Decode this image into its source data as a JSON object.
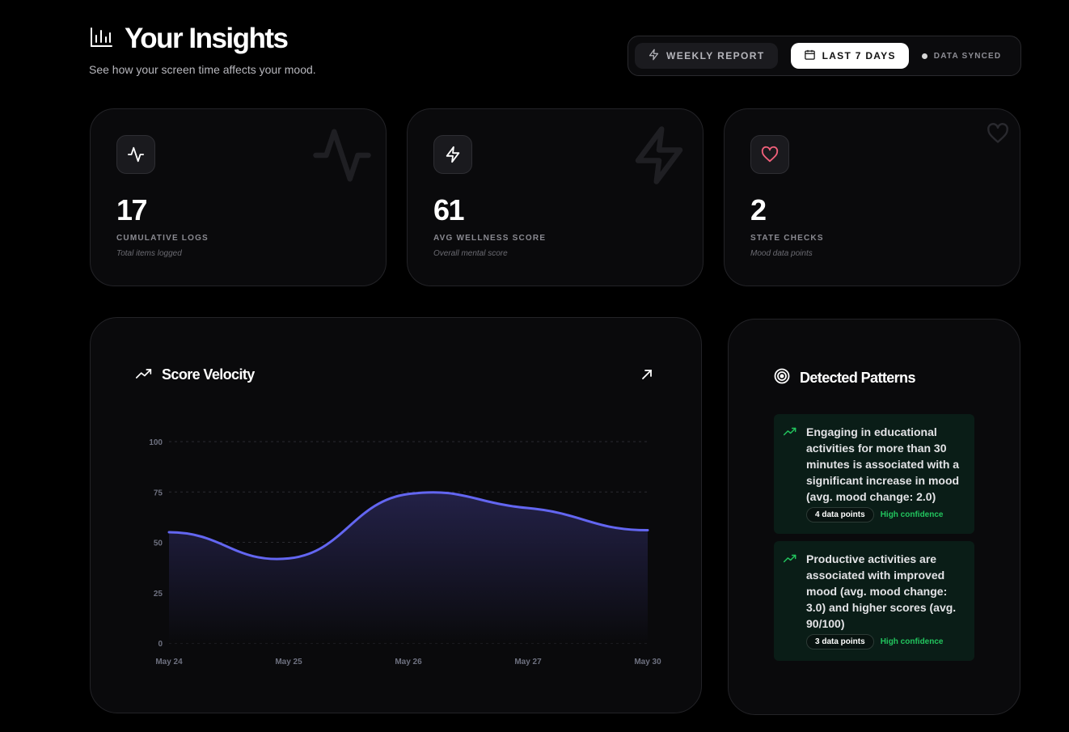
{
  "header": {
    "title": "Your Insights",
    "subtitle": "See how your screen time affects your mood."
  },
  "toolbar": {
    "weekly_label": "WEEKLY REPORT",
    "range_label": "LAST 7 DAYS",
    "sync_label": "DATA SYNCED"
  },
  "stats": [
    {
      "value": "17",
      "label": "CUMULATIVE LOGS",
      "sub": "Total items logged",
      "icon": "activity-icon"
    },
    {
      "value": "61",
      "label": "AVG WELLNESS SCORE",
      "sub": "Overall mental score",
      "icon": "lightning-icon"
    },
    {
      "value": "2",
      "label": "STATE CHECKS",
      "sub": "Mood data points",
      "icon": "heart-icon"
    }
  ],
  "chart": {
    "title": "Score Velocity"
  },
  "chart_data": {
    "type": "area",
    "categories": [
      "May 24",
      "May 25",
      "May 26",
      "May 27",
      "May 30"
    ],
    "values": [
      55,
      42,
      74,
      67,
      56
    ],
    "yticks": [
      0,
      25,
      50,
      75,
      100
    ],
    "ylim": [
      0,
      100
    ],
    "grid": true,
    "colors": {
      "line": "#6366f1",
      "fill_top": "#24224a",
      "fill_bottom": "#0a0a0c",
      "grid": "#2a2a30",
      "tick": "#6e7180"
    }
  },
  "patterns": {
    "title": "Detected Patterns",
    "items": [
      {
        "text": "Engaging in educational activities for more than 30 minutes is associated with a significant increase in mood (avg. mood change: 2.0)",
        "points": "4 data points",
        "confidence": "High confidence"
      },
      {
        "text": "Productive activities are associated with improved mood (avg. mood change: 3.0) and higher scores (avg. 90/100)",
        "points": "3 data points",
        "confidence": "High confidence"
      }
    ]
  }
}
